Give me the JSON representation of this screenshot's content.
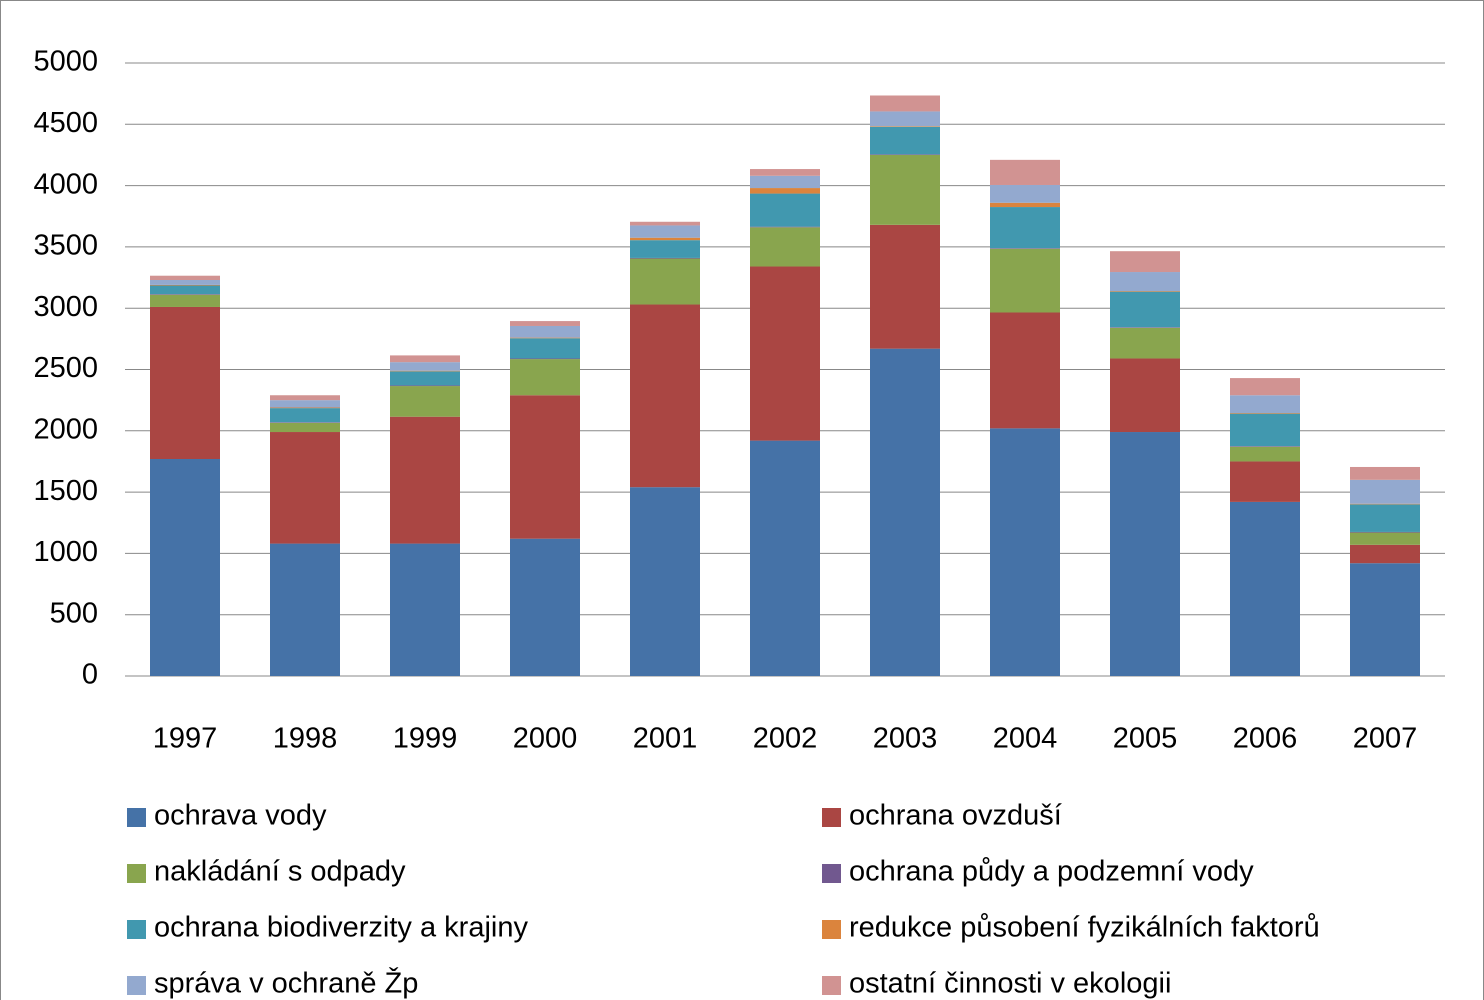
{
  "chart_data": {
    "type": "bar",
    "stacked": true,
    "categories": [
      "1997",
      "1998",
      "1999",
      "2000",
      "2001",
      "2002",
      "2003",
      "2004",
      "2005",
      "2006",
      "2007"
    ],
    "series": [
      {
        "name": "ochrava vody",
        "color": "#4572a7",
        "values": [
          1770,
          1080,
          1080,
          1120,
          1540,
          1920,
          2670,
          2020,
          1990,
          1420,
          920
        ]
      },
      {
        "name": "ochrana ovzduší",
        "color": "#aa4643",
        "values": [
          1240,
          910,
          1035,
          1170,
          1490,
          1420,
          1010,
          945,
          600,
          330,
          150
        ]
      },
      {
        "name": "nakládání s odpady",
        "color": "#89a54e",
        "values": [
          100,
          75,
          250,
          295,
          375,
          320,
          570,
          520,
          250,
          120,
          100
        ]
      },
      {
        "name": "ochrana půdy a podzemní vody",
        "color": "#71588f",
        "values": [
          5,
          5,
          5,
          5,
          5,
          5,
          5,
          5,
          5,
          5,
          5
        ]
      },
      {
        "name": "ochrana biodiverzity a krajiny",
        "color": "#4198af",
        "values": [
          70,
          115,
          115,
          165,
          145,
          270,
          225,
          335,
          290,
          265,
          225
        ]
      },
      {
        "name": "redukce působení fyzikálních faktorů",
        "color": "#db843d",
        "values": [
          5,
          5,
          5,
          5,
          20,
          45,
          5,
          35,
          5,
          5,
          5
        ]
      },
      {
        "name": "správa v ochraně Žp",
        "color": "#93a9cf",
        "values": [
          40,
          60,
          70,
          95,
          100,
          100,
          120,
          145,
          155,
          145,
          195
        ]
      },
      {
        "name": "ostatní činnosti v ekologii",
        "color": "#d19392",
        "values": [
          35,
          40,
          55,
          40,
          30,
          55,
          130,
          205,
          170,
          140,
          105
        ]
      }
    ],
    "ylim": [
      0,
      5000
    ],
    "yticks": [
      0,
      500,
      1000,
      1500,
      2000,
      2500,
      3000,
      3500,
      4000,
      4500,
      5000
    ],
    "grid": true,
    "legend": "bottom"
  }
}
